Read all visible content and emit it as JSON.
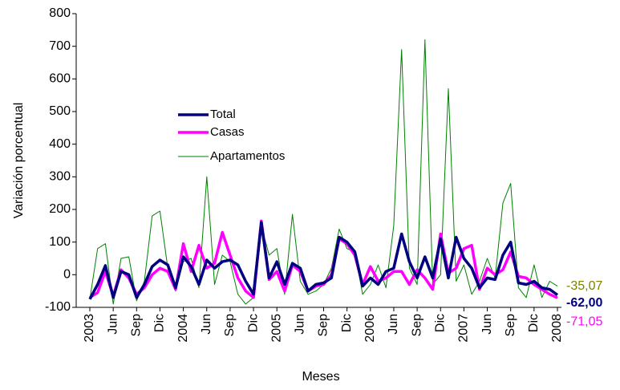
{
  "chart_data": {
    "type": "line",
    "xlabel": "Meses",
    "ylabel": "Variación porcentual",
    "categories": [
      "2003",
      null,
      null,
      "Jun",
      null,
      null,
      "Sep",
      null,
      null,
      "Dic",
      null,
      null,
      "2004",
      null,
      null,
      "Jun",
      null,
      null,
      "Sep",
      null,
      null,
      "Dic",
      null,
      null,
      "2005",
      null,
      null,
      "Jun",
      null,
      null,
      "Sep",
      null,
      null,
      "Dic",
      null,
      null,
      "2006",
      null,
      null,
      "Jun",
      null,
      null,
      "Sep",
      null,
      null,
      "Dic",
      null,
      null,
      "2007",
      null,
      null,
      "Jun",
      null,
      null,
      "Sep",
      null,
      null,
      "Dic",
      null,
      null,
      "2008"
    ],
    "ylim": [
      -100,
      800
    ],
    "yticks": [
      -100,
      0,
      100,
      200,
      300,
      400,
      500,
      600,
      700,
      800
    ],
    "legend": "center-left",
    "series": [
      {
        "name": "Total",
        "color": "#000080",
        "width": 3.5,
        "label_color": "#000080",
        "values": [
          -75,
          -30,
          28,
          -70,
          10,
          0,
          -70,
          -30,
          25,
          45,
          30,
          -40,
          55,
          25,
          -30,
          45,
          20,
          40,
          45,
          30,
          -20,
          -60,
          160,
          -10,
          40,
          -30,
          35,
          20,
          -50,
          -30,
          -25,
          -10,
          115,
          100,
          70,
          -35,
          -10,
          -30,
          10,
          20,
          125,
          40,
          -10,
          55,
          -10,
          110,
          -10,
          115,
          50,
          20,
          -40,
          -10,
          -15,
          60,
          100,
          -25,
          -30,
          -20,
          -40,
          -45,
          -62
        ],
        "value_labels": [
          null,
          null,
          null,
          null,
          null,
          null,
          null,
          null,
          null,
          null,
          null,
          null,
          null,
          null,
          null,
          null,
          null,
          null,
          null,
          null,
          null,
          null,
          null,
          null,
          null,
          null,
          null,
          null,
          null,
          null,
          null,
          null,
          null,
          null,
          null,
          null,
          null,
          null,
          null,
          null,
          null,
          null,
          null,
          null,
          null,
          null,
          null,
          null,
          null,
          null,
          null,
          null,
          null,
          null,
          null,
          null,
          null,
          null,
          null,
          null,
          "-62,00"
        ]
      },
      {
        "name": "Casas",
        "color": "#ff00ff",
        "width": 3.5,
        "label_color": "#ff00ff",
        "values": [
          -70,
          -55,
          10,
          -65,
          15,
          -10,
          -60,
          -40,
          0,
          20,
          10,
          -45,
          95,
          10,
          90,
          20,
          35,
          130,
          60,
          -10,
          -50,
          -70,
          165,
          -15,
          10,
          -50,
          30,
          10,
          -50,
          -35,
          -30,
          0,
          110,
          95,
          60,
          -30,
          25,
          -20,
          -10,
          10,
          10,
          -30,
          15,
          -10,
          -45,
          125,
          5,
          20,
          80,
          90,
          -45,
          20,
          0,
          15,
          70,
          -5,
          -10,
          -30,
          -45,
          -60,
          -71.05
        ],
        "value_labels": [
          null,
          null,
          null,
          null,
          null,
          null,
          null,
          null,
          null,
          null,
          null,
          null,
          null,
          null,
          null,
          null,
          null,
          null,
          null,
          null,
          null,
          null,
          null,
          null,
          null,
          null,
          null,
          null,
          null,
          null,
          null,
          null,
          null,
          null,
          null,
          null,
          null,
          null,
          null,
          null,
          null,
          null,
          null,
          null,
          null,
          null,
          null,
          null,
          null,
          null,
          null,
          null,
          null,
          null,
          null,
          null,
          null,
          null,
          null,
          null,
          "-71,05"
        ]
      },
      {
        "name": "Apartamentos",
        "color": "#008000",
        "width": 1,
        "label_color": "#808000",
        "values": [
          -75,
          80,
          95,
          -90,
          50,
          55,
          -80,
          -20,
          180,
          195,
          20,
          -50,
          40,
          50,
          -40,
          300,
          -30,
          60,
          40,
          -60,
          -90,
          -70,
          150,
          60,
          80,
          -60,
          185,
          -20,
          -60,
          -50,
          -30,
          20,
          140,
          80,
          70,
          -60,
          -30,
          30,
          -40,
          150,
          690,
          20,
          -30,
          720,
          -30,
          0,
          570,
          -20,
          30,
          -60,
          -20,
          50,
          -10,
          220,
          280,
          -40,
          -70,
          30,
          -70,
          -20,
          -35.07
        ],
        "value_labels": [
          null,
          null,
          null,
          null,
          null,
          null,
          null,
          null,
          null,
          null,
          null,
          null,
          null,
          null,
          null,
          null,
          null,
          null,
          null,
          null,
          null,
          null,
          null,
          null,
          null,
          null,
          null,
          null,
          null,
          null,
          null,
          null,
          null,
          null,
          null,
          null,
          null,
          null,
          null,
          null,
          null,
          null,
          null,
          null,
          null,
          null,
          null,
          null,
          null,
          null,
          null,
          null,
          null,
          null,
          null,
          null,
          null,
          null,
          null,
          null,
          "-35,07"
        ]
      }
    ]
  }
}
